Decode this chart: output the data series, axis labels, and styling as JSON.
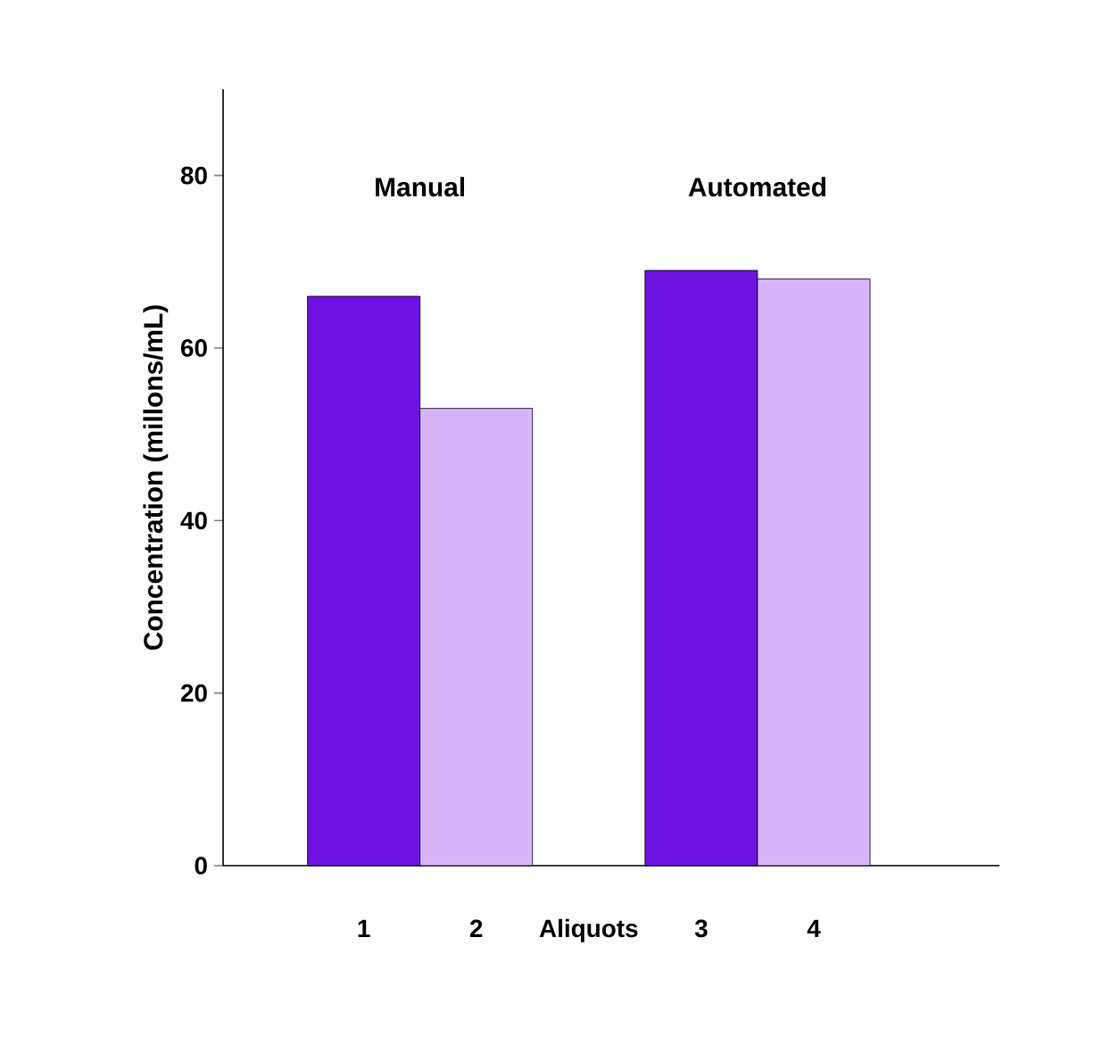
{
  "chart_data": {
    "type": "bar",
    "categories": [
      "1",
      "2",
      null,
      "3",
      "4"
    ],
    "values": [
      66,
      53,
      null,
      69,
      68
    ],
    "colors": [
      "#6f12e0",
      "#d8b4fa",
      null,
      "#6f12e0",
      "#d8b4fa"
    ],
    "xlabel": "Aliquots",
    "ylabel": "Concentration (millons/mL)",
    "ylim": [
      0,
      90
    ],
    "yticks": [
      0,
      20,
      40,
      60,
      80
    ],
    "annotations": [
      "Manual",
      "Automated"
    ]
  }
}
